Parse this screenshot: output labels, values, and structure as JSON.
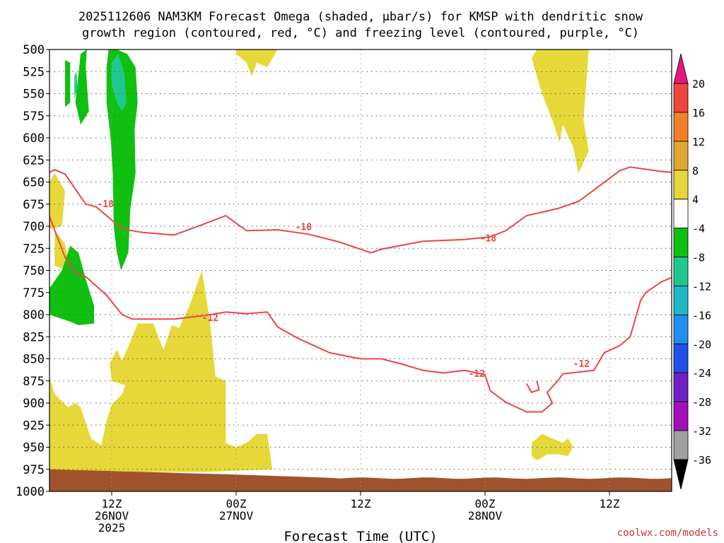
{
  "chart_data": {
    "type": "heatmap",
    "title_line1": "2025112606 NAM3KM Forecast Omega (shaded, μbar/s) for KMSP with dendritic snow",
    "title_line2": "growth region (contoured, red, °C) and freezing level (contoured, purple, °C)",
    "xlabel": "Forecast Time (UTC)",
    "credit": "coolwx.com/models",
    "y_axis": {
      "range": [
        500,
        1000
      ],
      "ticks": [
        "500",
        "525",
        "550",
        "575",
        "600",
        "625",
        "650",
        "675",
        "700",
        "725",
        "750",
        "775",
        "800",
        "825",
        "850",
        "875",
        "900",
        "925",
        "950",
        "975",
        "1000"
      ]
    },
    "x_axis": {
      "range_hours": [
        6,
        66
      ],
      "ticks": [
        {
          "hour": 12,
          "lines": [
            "12Z",
            "26NOV",
            "2025"
          ]
        },
        {
          "hour": 24,
          "lines": [
            "00Z",
            "27NOV"
          ]
        },
        {
          "hour": 36,
          "lines": [
            "12Z"
          ]
        },
        {
          "hour": 48,
          "lines": [
            "00Z",
            "28NOV"
          ]
        },
        {
          "hour": 60,
          "lines": [
            "12Z"
          ]
        }
      ]
    },
    "colorbar": {
      "labels": [
        "20",
        "16",
        "12",
        "8",
        "4",
        "-4",
        "-8",
        "-12",
        "-16",
        "-20",
        "-24",
        "-28",
        "-32",
        "-36"
      ],
      "top_arrow_color": "#e8187a",
      "bottom_arrow_color": "#000000",
      "bins": [
        {
          "color": "#f0443c"
        },
        {
          "color": "#f0802a"
        },
        {
          "color": "#e0a830"
        },
        {
          "color": "#e6d838"
        },
        {
          "color": "#ffffff"
        },
        {
          "color": "#10c010"
        },
        {
          "color": "#20c890"
        },
        {
          "color": "#20b8c8"
        },
        {
          "color": "#2090f0"
        },
        {
          "color": "#2050e8"
        },
        {
          "color": "#7020c8"
        },
        {
          "color": "#a010b8"
        },
        {
          "color": "#a0a0a0"
        }
      ]
    },
    "contours": [
      {
        "label": "-18",
        "color": "#ee4444",
        "points": [
          [
            6,
            639
          ],
          [
            6.5,
            636
          ],
          [
            7.5,
            641
          ],
          [
            9.5,
            675
          ],
          [
            10.5,
            678
          ],
          [
            13,
            703
          ],
          [
            15,
            707
          ],
          [
            18,
            710
          ],
          [
            21,
            697
          ],
          [
            23,
            688
          ],
          [
            25,
            705
          ],
          [
            28,
            704
          ],
          [
            31,
            709
          ],
          [
            34,
            718
          ],
          [
            37,
            730
          ],
          [
            38,
            726
          ],
          [
            42,
            717
          ],
          [
            46,
            715
          ],
          [
            48.5,
            712
          ],
          [
            50,
            705
          ],
          [
            52,
            688
          ],
          [
            55,
            680
          ],
          [
            57,
            672
          ],
          [
            58.5,
            659
          ],
          [
            61,
            637
          ],
          [
            62,
            633
          ],
          [
            65,
            638
          ],
          [
            66,
            639
          ]
        ]
      },
      {
        "label": "-18",
        "color": "#ee4444",
        "points": [
          [
            6,
            689
          ],
          [
            7.5,
            735
          ],
          [
            8.5,
            753
          ],
          [
            9.5,
            757
          ],
          [
            11.5,
            778
          ],
          [
            13,
            800
          ],
          [
            14,
            805
          ],
          [
            18,
            805
          ],
          [
            21,
            801
          ],
          [
            23,
            797
          ],
          [
            25,
            799
          ],
          [
            27,
            797
          ],
          [
            28,
            814
          ],
          [
            30,
            827
          ],
          [
            33,
            843
          ],
          [
            36,
            850
          ],
          [
            38,
            850
          ],
          [
            40,
            856
          ],
          [
            42,
            863
          ],
          [
            44,
            866
          ],
          [
            46,
            863
          ],
          [
            48,
            868
          ],
          [
            48.5,
            886
          ],
          [
            50,
            899
          ],
          [
            52,
            910
          ],
          [
            53.5,
            910
          ],
          [
            54.5,
            900
          ],
          [
            54,
            888
          ],
          [
            55,
            875
          ],
          [
            55.5,
            867
          ],
          [
            57,
            865
          ],
          [
            58.5,
            863
          ],
          [
            59.5,
            843
          ],
          [
            61,
            835
          ],
          [
            62,
            825
          ],
          [
            63,
            784
          ],
          [
            63.5,
            775
          ],
          [
            65,
            763
          ],
          [
            66,
            758
          ]
        ]
      },
      {
        "label": "-12",
        "color": "#ee4444",
        "points": [
          [
            52,
            878
          ],
          [
            52.5,
            888
          ],
          [
            53.2,
            885
          ],
          [
            53,
            875
          ]
        ]
      }
    ],
    "contour_labels": [
      {
        "text": "-18",
        "x": 11.4,
        "y": 675
      },
      {
        "text": "-18",
        "x": 30.5,
        "y": 701
      },
      {
        "text": "-18",
        "x": 48.3,
        "y": 714
      },
      {
        "text": "-12",
        "x": 21.5,
        "y": 804
      },
      {
        "text": "-12",
        "x": 47.2,
        "y": 867
      },
      {
        "text": "-12",
        "x": 57.3,
        "y": 856
      }
    ],
    "regions": [
      {
        "bin": 3,
        "points": [
          [
            6,
            870
          ],
          [
            6.5,
            890
          ],
          [
            7.8,
            905
          ],
          [
            8.5,
            900
          ],
          [
            9,
            905
          ],
          [
            10,
            940
          ],
          [
            11,
            948
          ],
          [
            11.5,
            920
          ],
          [
            12,
            902
          ],
          [
            13,
            890
          ],
          [
            13.3,
            880
          ],
          [
            12,
            875
          ],
          [
            11.8,
            855
          ],
          [
            12.5,
            840
          ],
          [
            13,
            852
          ],
          [
            14,
            825
          ],
          [
            14.5,
            810
          ],
          [
            16,
            810
          ],
          [
            17,
            840
          ],
          [
            17.8,
            812
          ],
          [
            18.5,
            815
          ],
          [
            19.5,
            790
          ],
          [
            20.7,
            750
          ],
          [
            21.5,
            810
          ],
          [
            22,
            870
          ],
          [
            23,
            875
          ],
          [
            23,
            945
          ],
          [
            24,
            950
          ],
          [
            25,
            945
          ],
          [
            26,
            935
          ],
          [
            27,
            935
          ],
          [
            27.5,
            975
          ],
          [
            21,
            978
          ],
          [
            6,
            978
          ]
        ]
      },
      {
        "bin": 3,
        "points": [
          [
            6,
            650
          ],
          [
            6.5,
            640
          ],
          [
            7.5,
            660
          ],
          [
            7.2,
            700
          ],
          [
            6,
            703
          ]
        ]
      },
      {
        "bin": 3,
        "points": [
          [
            6.5,
            705
          ],
          [
            7.5,
            720
          ],
          [
            8,
            750
          ],
          [
            6.5,
            745
          ]
        ]
      },
      {
        "bin": 3,
        "points": [
          [
            24,
            500
          ],
          [
            28,
            500
          ],
          [
            27,
            520
          ],
          [
            26,
            515
          ],
          [
            25.5,
            530
          ],
          [
            25,
            515
          ],
          [
            24,
            505
          ]
        ]
      },
      {
        "bin": 3,
        "points": [
          [
            53,
            500
          ],
          [
            58,
            500
          ],
          [
            57.5,
            580
          ],
          [
            58,
            615
          ],
          [
            57,
            640
          ],
          [
            56.5,
            610
          ],
          [
            55.5,
            585
          ],
          [
            55.2,
            605
          ],
          [
            54.5,
            580
          ],
          [
            53.5,
            550
          ],
          [
            53,
            530
          ],
          [
            52.5,
            510
          ]
        ]
      },
      {
        "bin": 3,
        "points": [
          [
            52.5,
            945
          ],
          [
            53.5,
            935
          ],
          [
            54.5,
            940
          ],
          [
            55.5,
            945
          ],
          [
            56,
            940
          ],
          [
            56.5,
            950
          ],
          [
            56,
            960
          ],
          [
            55,
            958
          ],
          [
            54,
            958
          ],
          [
            53,
            965
          ],
          [
            52.5,
            960
          ]
        ]
      },
      {
        "bin": 5,
        "points": [
          [
            6,
            793
          ],
          [
            6,
            770
          ],
          [
            7.2,
            750
          ],
          [
            8,
            722
          ],
          [
            8.8,
            730
          ],
          [
            9.5,
            760
          ],
          [
            10.3,
            790
          ],
          [
            10.3,
            810
          ],
          [
            8.8,
            812
          ],
          [
            8,
            808
          ],
          [
            6,
            800
          ]
        ]
      },
      {
        "bin": 5,
        "points": [
          [
            7.5,
            512
          ],
          [
            8,
            515
          ],
          [
            8,
            560
          ],
          [
            7.5,
            565
          ]
        ]
      },
      {
        "bin": 5,
        "points": [
          [
            8.5,
            560
          ],
          [
            9,
            505
          ],
          [
            9.6,
            500
          ],
          [
            9.5,
            520
          ],
          [
            9.8,
            570
          ],
          [
            9,
            585
          ]
        ]
      },
      {
        "bin": 5,
        "points": [
          [
            11.7,
            500
          ],
          [
            12.5,
            500
          ],
          [
            13.5,
            505
          ],
          [
            14.3,
            520
          ],
          [
            14.5,
            560
          ],
          [
            14.2,
            590
          ],
          [
            14.3,
            640
          ],
          [
            13.8,
            680
          ],
          [
            13.6,
            730
          ],
          [
            12.9,
            750
          ],
          [
            12.5,
            730
          ],
          [
            12.2,
            700
          ],
          [
            12.1,
            640
          ],
          [
            11.9,
            600
          ],
          [
            11.5,
            560
          ],
          [
            11.5,
            520
          ]
        ]
      },
      {
        "bin": 6,
        "points": [
          [
            12,
            515
          ],
          [
            12.6,
            505
          ],
          [
            13.2,
            525
          ],
          [
            13.4,
            560
          ],
          [
            13,
            570
          ],
          [
            12.5,
            560
          ],
          [
            12,
            540
          ]
        ]
      },
      {
        "bin": 6,
        "points": [
          [
            8.4,
            530
          ],
          [
            8.6,
            525
          ],
          [
            8.7,
            545
          ],
          [
            8.4,
            555
          ]
        ]
      }
    ],
    "surface_color": "#a0522d"
  }
}
